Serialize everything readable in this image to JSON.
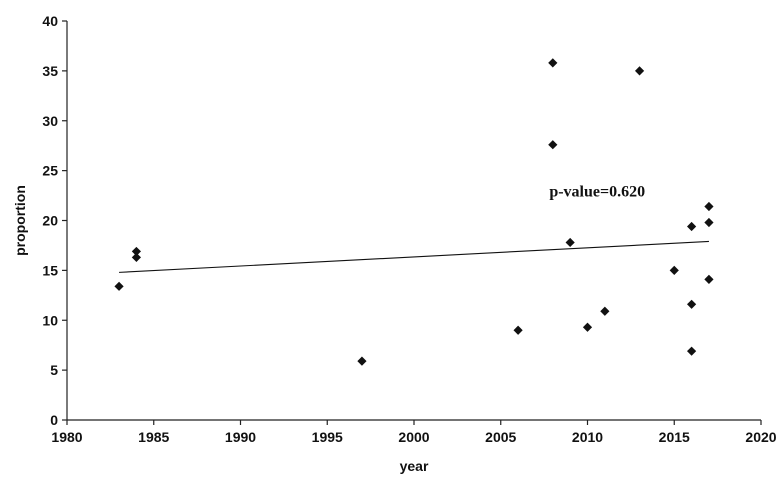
{
  "chart_data": {
    "type": "scatter",
    "title": "",
    "xlabel": "year",
    "ylabel": "proportion",
    "xlim": [
      1980,
      2020
    ],
    "ylim": [
      0,
      40
    ],
    "xticks": [
      1980,
      1985,
      1990,
      1995,
      2000,
      2005,
      2010,
      2015,
      2020
    ],
    "yticks": [
      0,
      5,
      10,
      15,
      20,
      25,
      30,
      35,
      40
    ],
    "grid": false,
    "legend": "none",
    "marker": "diamond",
    "marker_color": "#111111",
    "points": [
      {
        "x": 1983,
        "y": 13.4
      },
      {
        "x": 1984,
        "y": 16.9
      },
      {
        "x": 1984,
        "y": 16.3
      },
      {
        "x": 1997,
        "y": 5.9
      },
      {
        "x": 2006,
        "y": 9.0
      },
      {
        "x": 2008,
        "y": 35.8
      },
      {
        "x": 2008,
        "y": 27.6
      },
      {
        "x": 2009,
        "y": 17.8
      },
      {
        "x": 2010,
        "y": 9.3
      },
      {
        "x": 2011,
        "y": 10.9
      },
      {
        "x": 2013,
        "y": 35.0
      },
      {
        "x": 2015,
        "y": 15.0
      },
      {
        "x": 2016,
        "y": 19.4
      },
      {
        "x": 2016,
        "y": 11.6
      },
      {
        "x": 2016,
        "y": 6.9
      },
      {
        "x": 2017,
        "y": 21.4
      },
      {
        "x": 2017,
        "y": 19.8
      },
      {
        "x": 2017,
        "y": 14.1
      }
    ],
    "trendline": {
      "x": [
        1983,
        2017
      ],
      "y": [
        14.8,
        17.9
      ]
    },
    "annotation": {
      "text": "p-value=0.620",
      "x": 2007.8,
      "y": 22.4
    }
  }
}
